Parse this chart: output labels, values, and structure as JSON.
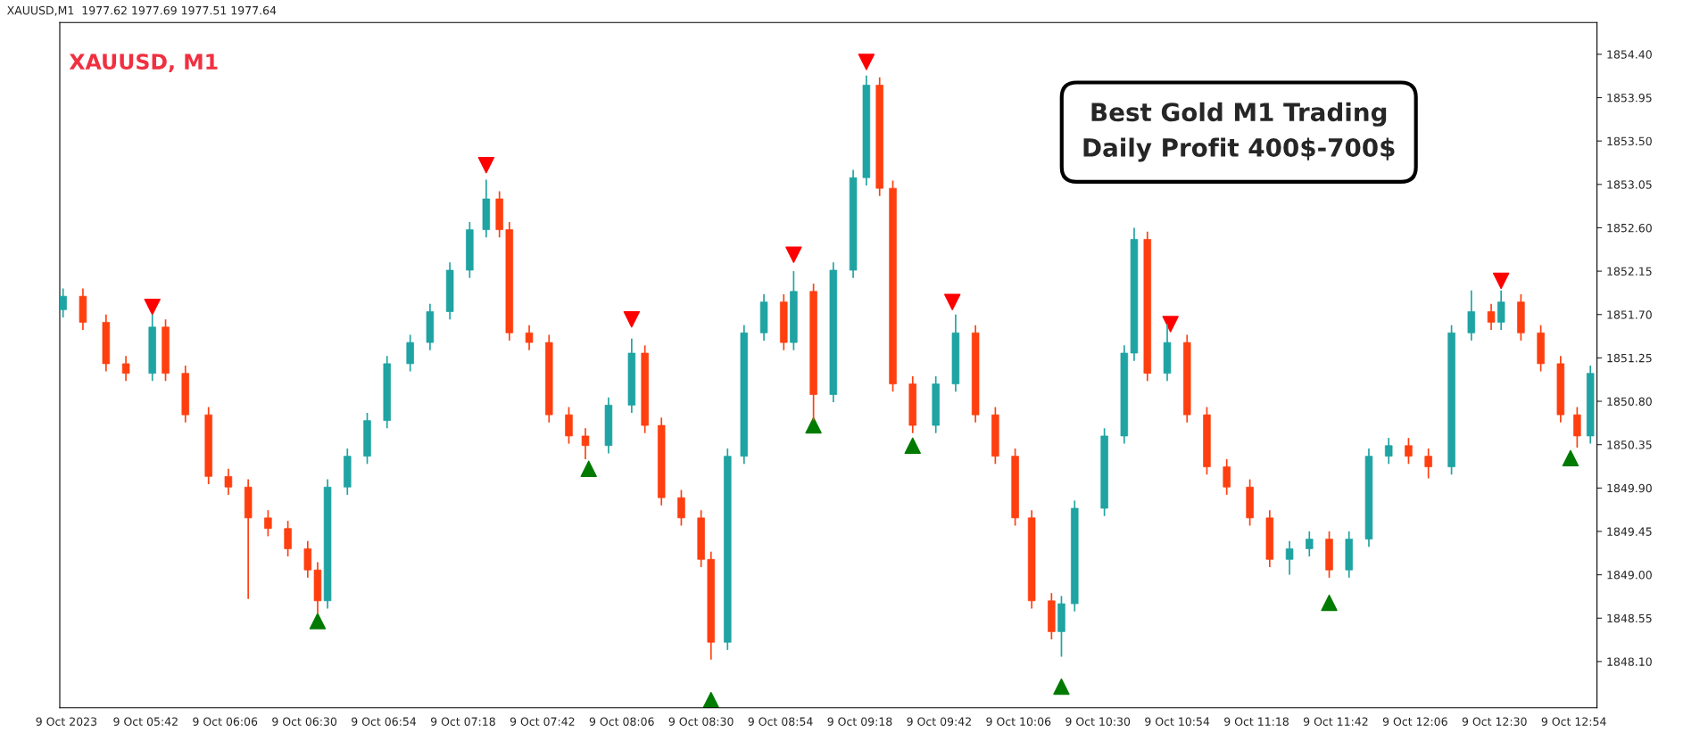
{
  "chart_data": {
    "type": "candlestick",
    "title": "XAUUSD, M1",
    "subtitle": "XAUUSD,M1  1977.62 1977.69 1977.51 1977.64",
    "annotations": [
      "Best Gold M1 Trading",
      "Daily Profit 400$-700$"
    ],
    "x": [
      "2023-10-09T05:17",
      "2023-10-09T05:23",
      "2023-10-09T05:30",
      "2023-10-09T05:36",
      "2023-10-09T05:44",
      "2023-10-09T05:48",
      "2023-10-09T05:54",
      "2023-10-09T06:01",
      "2023-10-09T06:07",
      "2023-10-09T06:13",
      "2023-10-09T06:19",
      "2023-10-09T06:25",
      "2023-10-09T06:31",
      "2023-10-09T06:34",
      "2023-10-09T06:37",
      "2023-10-09T06:43",
      "2023-10-09T06:49",
      "2023-10-09T06:55",
      "2023-10-09T07:02",
      "2023-10-09T07:08",
      "2023-10-09T07:14",
      "2023-10-09T07:20",
      "2023-10-09T07:25",
      "2023-10-09T07:29",
      "2023-10-09T07:32",
      "2023-10-09T07:38",
      "2023-10-09T07:44",
      "2023-10-09T07:50",
      "2023-10-09T07:55",
      "2023-10-09T08:02",
      "2023-10-09T08:09",
      "2023-10-09T08:13",
      "2023-10-09T08:18",
      "2023-10-09T08:24",
      "2023-10-09T08:30",
      "2023-10-09T08:33",
      "2023-10-09T08:38",
      "2023-10-09T08:43",
      "2023-10-09T08:49",
      "2023-10-09T08:55",
      "2023-10-09T08:58",
      "2023-10-09T09:04",
      "2023-10-09T09:10",
      "2023-10-09T09:16",
      "2023-10-09T09:20",
      "2023-10-09T09:24",
      "2023-10-09T09:28",
      "2023-10-09T09:34",
      "2023-10-09T09:41",
      "2023-10-09T09:47",
      "2023-10-09T09:53",
      "2023-10-09T09:59",
      "2023-10-09T10:05",
      "2023-10-09T10:10",
      "2023-10-09T10:16",
      "2023-10-09T10:19",
      "2023-10-09T10:23",
      "2023-10-09T10:32",
      "2023-10-09T10:38",
      "2023-10-09T10:41",
      "2023-10-09T10:45",
      "2023-10-09T10:51",
      "2023-10-09T10:57",
      "2023-10-09T11:03",
      "2023-10-09T11:09",
      "2023-10-09T11:16",
      "2023-10-09T11:22",
      "2023-10-09T11:28",
      "2023-10-09T11:34",
      "2023-10-09T11:40",
      "2023-10-09T11:46",
      "2023-10-09T11:52",
      "2023-10-09T11:58",
      "2023-10-09T12:04",
      "2023-10-09T12:10",
      "2023-10-09T12:17",
      "2023-10-09T12:23",
      "2023-10-09T12:29",
      "2023-10-09T12:32",
      "2023-10-09T12:38",
      "2023-10-09T12:44",
      "2023-10-09T12:50",
      "2023-10-09T12:55",
      "2023-10-09T12:59"
    ],
    "ohlc": [
      [
        1851.75,
        1851.97,
        1851.67,
        1851.89
      ],
      [
        1851.89,
        1851.97,
        1851.54,
        1851.62
      ],
      [
        1851.62,
        1851.7,
        1851.11,
        1851.19
      ],
      [
        1851.19,
        1851.27,
        1851.01,
        1851.09
      ],
      [
        1851.09,
        1851.7,
        1851.01,
        1851.57
      ],
      [
        1851.57,
        1851.65,
        1851.01,
        1851.09
      ],
      [
        1851.09,
        1851.17,
        1850.58,
        1850.66
      ],
      [
        1850.66,
        1850.74,
        1849.94,
        1850.02
      ],
      [
        1850.02,
        1850.1,
        1849.83,
        1849.91
      ],
      [
        1849.91,
        1849.99,
        1848.75,
        1849.59
      ],
      [
        1849.59,
        1849.67,
        1849.4,
        1849.48
      ],
      [
        1849.48,
        1849.56,
        1849.19,
        1849.27
      ],
      [
        1849.27,
        1849.35,
        1848.97,
        1849.05
      ],
      [
        1849.05,
        1849.13,
        1848.6,
        1848.73
      ],
      [
        1848.73,
        1849.99,
        1848.65,
        1849.91
      ],
      [
        1849.91,
        1850.31,
        1849.83,
        1850.23
      ],
      [
        1850.23,
        1850.68,
        1850.15,
        1850.6
      ],
      [
        1850.6,
        1851.27,
        1850.52,
        1851.19
      ],
      [
        1851.19,
        1851.49,
        1851.11,
        1851.41
      ],
      [
        1851.41,
        1851.81,
        1851.33,
        1851.73
      ],
      [
        1851.73,
        1852.24,
        1851.65,
        1852.16
      ],
      [
        1852.16,
        1852.66,
        1852.08,
        1852.58
      ],
      [
        1852.58,
        1853.1,
        1852.5,
        1852.9
      ],
      [
        1852.9,
        1852.98,
        1852.5,
        1852.58
      ],
      [
        1852.58,
        1852.66,
        1851.43,
        1851.51
      ],
      [
        1851.51,
        1851.59,
        1851.33,
        1851.41
      ],
      [
        1851.41,
        1851.49,
        1850.58,
        1850.66
      ],
      [
        1850.66,
        1850.74,
        1850.36,
        1850.44
      ],
      [
        1850.44,
        1850.52,
        1850.2,
        1850.34
      ],
      [
        1850.34,
        1850.84,
        1850.26,
        1850.76
      ],
      [
        1850.76,
        1851.45,
        1850.68,
        1851.3
      ],
      [
        1851.3,
        1851.38,
        1850.47,
        1850.55
      ],
      [
        1850.55,
        1850.63,
        1849.72,
        1849.8
      ],
      [
        1849.8,
        1849.88,
        1849.51,
        1849.59
      ],
      [
        1849.59,
        1849.67,
        1849.08,
        1849.16
      ],
      [
        1849.16,
        1849.24,
        1848.12,
        1848.3
      ],
      [
        1848.3,
        1850.31,
        1848.22,
        1850.23
      ],
      [
        1850.23,
        1851.59,
        1850.15,
        1851.51
      ],
      [
        1851.51,
        1851.91,
        1851.43,
        1851.83
      ],
      [
        1851.83,
        1851.91,
        1851.33,
        1851.41
      ],
      [
        1851.41,
        1852.15,
        1851.33,
        1851.94
      ],
      [
        1851.94,
        1852.02,
        1850.6,
        1850.87
      ],
      [
        1850.87,
        1852.24,
        1850.79,
        1852.16
      ],
      [
        1852.16,
        1853.2,
        1852.08,
        1853.12
      ],
      [
        1853.12,
        1854.18,
        1853.04,
        1854.08
      ],
      [
        1854.08,
        1854.16,
        1852.93,
        1853.01
      ],
      [
        1853.01,
        1853.09,
        1850.9,
        1850.98
      ],
      [
        1850.98,
        1851.06,
        1850.47,
        1850.55
      ],
      [
        1850.55,
        1851.06,
        1850.47,
        1850.98
      ],
      [
        1850.98,
        1851.7,
        1850.9,
        1851.51
      ],
      [
        1851.51,
        1851.59,
        1850.58,
        1850.66
      ],
      [
        1850.66,
        1850.74,
        1850.15,
        1850.23
      ],
      [
        1850.23,
        1850.31,
        1849.51,
        1849.59
      ],
      [
        1849.59,
        1849.67,
        1848.65,
        1848.73
      ],
      [
        1848.73,
        1848.81,
        1848.33,
        1848.41
      ],
      [
        1848.41,
        1848.78,
        1848.15,
        1848.7
      ],
      [
        1848.7,
        1849.77,
        1848.62,
        1849.69
      ],
      [
        1849.69,
        1850.52,
        1849.61,
        1850.44
      ],
      [
        1850.44,
        1851.38,
        1850.36,
        1851.3
      ],
      [
        1851.3,
        1852.6,
        1851.22,
        1852.48
      ],
      [
        1852.48,
        1852.56,
        1851.01,
        1851.09
      ],
      [
        1851.09,
        1851.6,
        1851.01,
        1851.41
      ],
      [
        1851.41,
        1851.49,
        1850.58,
        1850.66
      ],
      [
        1850.66,
        1850.74,
        1850.04,
        1850.12
      ],
      [
        1850.12,
        1850.2,
        1849.83,
        1849.91
      ],
      [
        1849.91,
        1849.99,
        1849.51,
        1849.59
      ],
      [
        1849.59,
        1849.67,
        1849.08,
        1849.16
      ],
      [
        1849.16,
        1849.35,
        1849.0,
        1849.27
      ],
      [
        1849.27,
        1849.45,
        1849.19,
        1849.37
      ],
      [
        1849.37,
        1849.45,
        1848.97,
        1849.05
      ],
      [
        1849.05,
        1849.45,
        1848.97,
        1849.37
      ],
      [
        1849.37,
        1850.31,
        1849.29,
        1850.23
      ],
      [
        1850.23,
        1850.42,
        1850.15,
        1850.34
      ],
      [
        1850.34,
        1850.42,
        1850.15,
        1850.23
      ],
      [
        1850.23,
        1850.31,
        1850.0,
        1850.12
      ],
      [
        1850.12,
        1851.59,
        1850.04,
        1851.51
      ],
      [
        1851.51,
        1851.95,
        1851.43,
        1851.73
      ],
      [
        1851.73,
        1851.81,
        1851.54,
        1851.62
      ],
      [
        1851.62,
        1851.95,
        1851.54,
        1851.83
      ],
      [
        1851.83,
        1851.91,
        1851.43,
        1851.51
      ],
      [
        1851.51,
        1851.59,
        1851.11,
        1851.19
      ],
      [
        1851.19,
        1851.27,
        1850.58,
        1850.66
      ],
      [
        1850.66,
        1850.74,
        1850.32,
        1850.44
      ],
      [
        1850.44,
        1851.17,
        1850.36,
        1851.09
      ]
    ],
    "colors": [
      "#1fa3a3",
      "#ff3f0f",
      "#ff3f0f",
      "#ff3f0f",
      "#1fa3a3",
      "#ff3f0f",
      "#ff3f0f",
      "#ff3f0f",
      "#ff3f0f",
      "#ff3f0f",
      "#ff3f0f",
      "#ff3f0f",
      "#ff3f0f",
      "#ff3f0f",
      "#1fa3a3",
      "#1fa3a3",
      "#1fa3a3",
      "#1fa3a3",
      "#1fa3a3",
      "#1fa3a3",
      "#1fa3a3",
      "#1fa3a3",
      "#1fa3a3",
      "#ff3f0f",
      "#ff3f0f",
      "#ff3f0f",
      "#ff3f0f",
      "#ff3f0f",
      "#ff3f0f",
      "#1fa3a3",
      "#1fa3a3",
      "#ff3f0f",
      "#ff3f0f",
      "#ff3f0f",
      "#ff3f0f",
      "#ff3f0f",
      "#1fa3a3",
      "#1fa3a3",
      "#1fa3a3",
      "#ff3f0f",
      "#1fa3a3",
      "#ff3f0f",
      "#1fa3a3",
      "#1fa3a3",
      "#1fa3a3",
      "#ff3f0f",
      "#ff3f0f",
      "#ff3f0f",
      "#1fa3a3",
      "#1fa3a3",
      "#ff3f0f",
      "#ff3f0f",
      "#ff3f0f",
      "#ff3f0f",
      "#ff3f0f",
      "#1fa3a3",
      "#1fa3a3",
      "#1fa3a3",
      "#1fa3a3",
      "#1fa3a3",
      "#ff3f0f",
      "#1fa3a3",
      "#ff3f0f",
      "#ff3f0f",
      "#ff3f0f",
      "#ff3f0f",
      "#ff3f0f",
      "#1fa3a3",
      "#1fa3a3",
      "#ff3f0f",
      "#1fa3a3",
      "#1fa3a3",
      "#1fa3a3",
      "#ff3f0f",
      "#ff3f0f",
      "#1fa3a3",
      "#1fa3a3",
      "#ff3f0f",
      "#1fa3a3",
      "#ff3f0f",
      "#ff3f0f",
      "#ff3f0f",
      "#ff3f0f",
      "#1fa3a3"
    ],
    "series": [
      {
        "type": "scatter",
        "color": "#ff0000",
        "marker": "triangle",
        "x": [
          "2023-10-09T05:44",
          "2023-10-09T07:25",
          "2023-10-09T08:09",
          "2023-10-09T08:58",
          "2023-10-09T09:20",
          "2023-10-09T09:46",
          "2023-10-09T10:52",
          "2023-10-09T12:32"
        ],
        "values": [
          1851.78,
          1853.25,
          1851.65,
          1852.32,
          1854.32,
          1851.83,
          1851.6,
          1852.05
        ]
      },
      {
        "type": "scatter",
        "color": "#007a00",
        "marker": "triangle",
        "x": [
          "2023-10-09T06:34",
          "2023-10-09T07:56",
          "2023-10-09T08:33",
          "2023-10-09T09:04",
          "2023-10-09T09:34",
          "2023-10-09T10:19",
          "2023-10-09T11:40",
          "2023-10-09T12:53"
        ],
        "values": [
          1848.52,
          1850.1,
          1847.7,
          1850.55,
          1850.34,
          1847.84,
          1848.71,
          1850.21
        ]
      }
    ],
    "xlim": [
      "2023-10-09T05:16",
      "2023-10-09T13:01"
    ],
    "xticks": [
      {
        "value": "2023-10-09T05:18",
        "label": "9 Oct 2023"
      },
      {
        "value": "2023-10-09T05:42",
        "label": "9 Oct 05:42"
      },
      {
        "value": "2023-10-09T06:06",
        "label": "9 Oct 06:06"
      },
      {
        "value": "2023-10-09T06:30",
        "label": "9 Oct 06:30"
      },
      {
        "value": "2023-10-09T06:54",
        "label": "9 Oct 06:54"
      },
      {
        "value": "2023-10-09T07:18",
        "label": "9 Oct 07:18"
      },
      {
        "value": "2023-10-09T07:42",
        "label": "9 Oct 07:42"
      },
      {
        "value": "2023-10-09T08:06",
        "label": "9 Oct 08:06"
      },
      {
        "value": "2023-10-09T08:30",
        "label": "9 Oct 08:30"
      },
      {
        "value": "2023-10-09T08:54",
        "label": "9 Oct 08:54"
      },
      {
        "value": "2023-10-09T09:18",
        "label": "9 Oct 09:18"
      },
      {
        "value": "2023-10-09T09:42",
        "label": "9 Oct 09:42"
      },
      {
        "value": "2023-10-09T10:06",
        "label": "9 Oct 10:06"
      },
      {
        "value": "2023-10-09T10:30",
        "label": "9 Oct 10:30"
      },
      {
        "value": "2023-10-09T10:54",
        "label": "9 Oct 10:54"
      },
      {
        "value": "2023-10-09T11:18",
        "label": "9 Oct 11:18"
      },
      {
        "value": "2023-10-09T11:42",
        "label": "9 Oct 11:42"
      },
      {
        "value": "2023-10-09T12:06",
        "label": "9 Oct 12:06"
      },
      {
        "value": "2023-10-09T12:30",
        "label": "9 Oct 12:30"
      },
      {
        "value": "2023-10-09T12:54",
        "label": "9 Oct 12:54"
      }
    ],
    "ylim": [
      1847.62,
      1854.73
    ],
    "yticks": [
      {
        "value": 1848.1,
        "label": "1848.10"
      },
      {
        "value": 1848.55,
        "label": "1848.55"
      },
      {
        "value": 1849.0,
        "label": "1849.00"
      },
      {
        "value": 1849.45,
        "label": "1849.45"
      },
      {
        "value": 1849.9,
        "label": "1849.90"
      },
      {
        "value": 1850.35,
        "label": "1850.35"
      },
      {
        "value": 1850.8,
        "label": "1850.80"
      },
      {
        "value": 1851.25,
        "label": "1851.25"
      },
      {
        "value": 1851.7,
        "label": "1851.70"
      },
      {
        "value": 1852.15,
        "label": "1852.15"
      },
      {
        "value": 1852.6,
        "label": "1852.60"
      },
      {
        "value": 1853.05,
        "label": "1853.05"
      },
      {
        "value": 1853.5,
        "label": "1853.50"
      },
      {
        "value": 1853.95,
        "label": "1853.95"
      },
      {
        "value": 1854.4,
        "label": "1854.40"
      }
    ],
    "grid": false,
    "legend": false
  }
}
